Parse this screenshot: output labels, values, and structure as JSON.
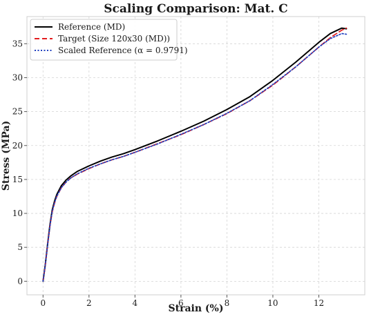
{
  "chart_data": {
    "type": "line",
    "title": "Scaling Comparison: Mat. C",
    "xlabel": "Strain (%)",
    "ylabel": "Stress (MPa)",
    "xlim": [
      -0.7,
      14.0
    ],
    "ylim": [
      -2.0,
      39.0
    ],
    "xticks": [
      0,
      2,
      4,
      6,
      8,
      10,
      12
    ],
    "yticks": [
      0,
      5,
      10,
      15,
      20,
      25,
      30,
      35
    ],
    "grid": true,
    "legend_position": "top-left",
    "series": [
      {
        "name": "Reference (MD)",
        "color": "#000000",
        "style": "solid",
        "x": [
          0,
          0.1,
          0.2,
          0.3,
          0.4,
          0.5,
          0.6,
          0.8,
          1.0,
          1.2,
          1.5,
          2.0,
          2.5,
          3.0,
          3.5,
          4.0,
          5.0,
          6.0,
          7.0,
          8.0,
          9.0,
          10.0,
          11.0,
          12.0,
          12.5,
          13.0,
          13.2
        ],
        "y": [
          0,
          2.5,
          5.5,
          8.3,
          10.5,
          11.8,
          12.8,
          14.1,
          14.9,
          15.5,
          16.2,
          17.0,
          17.7,
          18.3,
          18.8,
          19.4,
          20.7,
          22.1,
          23.6,
          25.3,
          27.2,
          29.6,
          32.3,
          35.2,
          36.5,
          37.3,
          37.2
        ]
      },
      {
        "name": "Target (Size 120x30 (MD))",
        "color": "#e31a1c",
        "style": "dashed",
        "x": [
          0,
          0.1,
          0.2,
          0.3,
          0.4,
          0.5,
          0.6,
          0.8,
          1.0,
          1.2,
          1.5,
          2.0,
          2.5,
          3.0,
          3.5,
          4.0,
          5.0,
          6.0,
          7.0,
          8.0,
          9.0,
          10.0,
          11.0,
          12.0,
          12.5,
          13.0,
          13.2
        ],
        "y": [
          0,
          2.4,
          5.4,
          8.1,
          10.2,
          11.5,
          12.5,
          13.8,
          14.6,
          15.2,
          15.8,
          16.6,
          17.3,
          17.9,
          18.4,
          19.0,
          20.3,
          21.6,
          23.1,
          24.7,
          26.6,
          28.9,
          31.6,
          34.5,
          35.9,
          37.0,
          37.3
        ]
      },
      {
        "name": "Scaled Reference (α = 0.9791)",
        "color": "#1f3fbf",
        "style": "dotted",
        "x": [
          0,
          0.1,
          0.2,
          0.3,
          0.4,
          0.5,
          0.6,
          0.8,
          1.0,
          1.2,
          1.5,
          2.0,
          2.5,
          3.0,
          3.5,
          4.0,
          5.0,
          6.0,
          7.0,
          8.0,
          9.0,
          10.0,
          11.0,
          12.0,
          12.5,
          13.0,
          13.2
        ],
        "y": [
          0,
          2.45,
          5.4,
          8.1,
          10.3,
          11.55,
          12.55,
          13.8,
          14.6,
          15.2,
          15.85,
          16.65,
          17.3,
          17.9,
          18.4,
          19.0,
          20.25,
          21.65,
          23.1,
          24.75,
          26.6,
          29.0,
          31.6,
          34.5,
          35.75,
          36.5,
          36.4
        ]
      }
    ]
  }
}
